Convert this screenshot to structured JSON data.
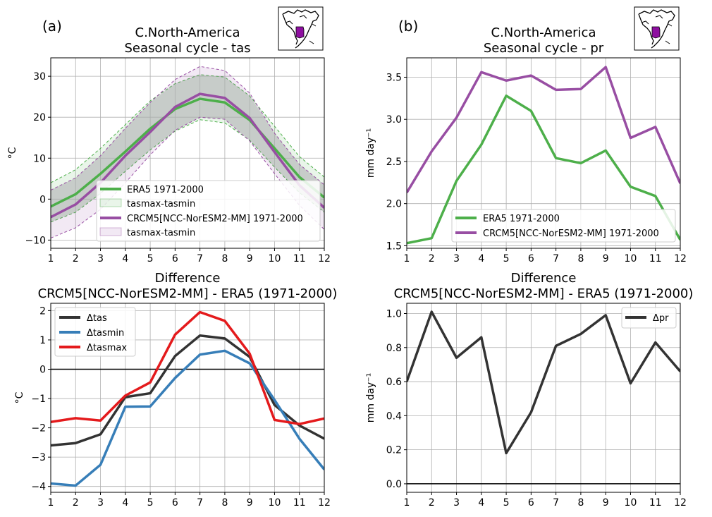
{
  "figure": {
    "panel_a": "(a)",
    "panel_b": "(b)"
  },
  "colors": {
    "era5": "#4daf4a",
    "crcm5": "#984ea3",
    "dark": "#333333",
    "tasmin": "#377eb8",
    "tasmax": "#e41a1c",
    "band_fill": "#c8d0c8"
  },
  "icons": {
    "map_a": "north-america-region-map-icon",
    "map_b": "north-america-region-map-icon"
  },
  "chart_data": [
    {
      "id": "a",
      "type": "line",
      "title_line1": "C.North-America",
      "title_line2": "Seasonal cycle - tas",
      "xlabel": "",
      "ylabel": "°C",
      "x": [
        1,
        2,
        3,
        4,
        5,
        6,
        7,
        8,
        9,
        10,
        11,
        12
      ],
      "xticks": [
        "1",
        "2",
        "3",
        "4",
        "5",
        "6",
        "7",
        "8",
        "9",
        "10",
        "11",
        "12"
      ],
      "ylim": [
        -12,
        34.5
      ],
      "yticks": [
        -10,
        0,
        10,
        20,
        30
      ],
      "yticklabels": [
        "−10",
        "0",
        "10",
        "20",
        "30"
      ],
      "grid": true,
      "legend_position": "lower-right",
      "series": [
        {
          "name": "ERA5 1971-2000",
          "color": "#4daf4a",
          "values": [
            -1.8,
            1.2,
            6.2,
            11.6,
            17.2,
            22.0,
            24.5,
            23.6,
            19.3,
            12.4,
            5.4,
            0.4
          ]
        },
        {
          "name": "CRCM5[NCC-NorESM2-MM] 1971-2000",
          "color": "#984ea3",
          "values": [
            -4.4,
            -1.3,
            4.0,
            10.6,
            16.4,
            22.5,
            25.7,
            24.7,
            19.8,
            11.5,
            3.4,
            -2.1
          ]
        }
      ],
      "bands": [
        {
          "name": "tasmax-tasmin",
          "of": "ERA5 1971-2000",
          "color": "#4daf4a",
          "upper": [
            4.0,
            7.2,
            12.4,
            18.2,
            24.0,
            28.2,
            30.4,
            29.8,
            25.2,
            17.8,
            10.4,
            5.4
          ],
          "lower": [
            -5.6,
            -3.2,
            1.4,
            6.8,
            12.0,
            16.6,
            19.4,
            18.6,
            14.4,
            7.8,
            1.6,
            -3.2
          ]
        },
        {
          "name": "tasmax-tasmin",
          "of": "CRCM5[NCC-NorESM2-MM] 1971-2000",
          "color": "#984ea3",
          "upper": [
            2.2,
            5.2,
            10.6,
            17.3,
            23.6,
            29.2,
            32.4,
            31.4,
            25.9,
            16.1,
            8.5,
            3.5
          ],
          "lower": [
            -9.5,
            -7.0,
            -2.5,
            4.0,
            10.8,
            16.8,
            20.0,
            19.5,
            14.2,
            6.2,
            -1.5,
            -7.4
          ]
        }
      ]
    },
    {
      "id": "b",
      "type": "line",
      "title_line1": "C.North-America",
      "title_line2": "Seasonal cycle - pr",
      "xlabel": "",
      "ylabel": "mm day⁻¹",
      "x": [
        1,
        2,
        3,
        4,
        5,
        6,
        7,
        8,
        9,
        10,
        11,
        12
      ],
      "xticks": [
        "1",
        "2",
        "3",
        "4",
        "5",
        "6",
        "7",
        "8",
        "9",
        "10",
        "11",
        "12"
      ],
      "ylim": [
        1.47,
        3.73
      ],
      "yticks": [
        1.5,
        2.0,
        2.5,
        3.0,
        3.5
      ],
      "yticklabels": [
        "1.5",
        "2.0",
        "2.5",
        "3.0",
        "3.5"
      ],
      "grid": true,
      "legend_position": "lower-right",
      "series": [
        {
          "name": "ERA5 1971-2000",
          "color": "#4daf4a",
          "values": [
            1.53,
            1.59,
            2.27,
            2.7,
            3.28,
            3.1,
            2.54,
            2.48,
            2.63,
            2.2,
            2.09,
            1.57
          ]
        },
        {
          "name": "CRCM5[NCC-NorESM2-MM] 1971-2000",
          "color": "#984ea3",
          "values": [
            2.13,
            2.62,
            3.02,
            3.56,
            3.46,
            3.52,
            3.35,
            3.36,
            3.62,
            2.78,
            2.91,
            2.24
          ]
        }
      ]
    },
    {
      "id": "c",
      "type": "line",
      "title_line1": "Difference",
      "title_line2": "CRCM5[NCC-NorESM2-MM] - ERA5 (1971-2000)",
      "xlabel": "",
      "ylabel": "°C",
      "x": [
        1,
        2,
        3,
        4,
        5,
        6,
        7,
        8,
        9,
        10,
        11,
        12
      ],
      "xticks": [
        "1",
        "2",
        "3",
        "4",
        "5",
        "6",
        "7",
        "8",
        "9",
        "10",
        "11",
        "12"
      ],
      "ylim": [
        -4.2,
        2.25
      ],
      "yticks": [
        -4,
        -3,
        -2,
        -1,
        0,
        1,
        2
      ],
      "yticklabels": [
        "−4",
        "−3",
        "−2",
        "−1",
        "0",
        "1",
        "2"
      ],
      "grid": true,
      "zero_line": true,
      "legend_position": "upper-left",
      "series": [
        {
          "name": "Δtas",
          "color": "#333333",
          "values": [
            -2.6,
            -2.52,
            -2.22,
            -0.95,
            -0.82,
            0.45,
            1.15,
            1.05,
            0.42,
            -1.22,
            -1.92,
            -2.37
          ]
        },
        {
          "name": "Δtasmin",
          "color": "#377eb8",
          "values": [
            -3.9,
            -3.97,
            -3.26,
            -1.28,
            -1.27,
            -0.3,
            0.5,
            0.63,
            0.2,
            -1.05,
            -2.37,
            -3.42
          ]
        },
        {
          "name": "Δtasmax",
          "color": "#e41a1c",
          "values": [
            -1.8,
            -1.67,
            -1.75,
            -0.9,
            -0.45,
            1.18,
            1.95,
            1.65,
            0.53,
            -1.73,
            -1.87,
            -1.68
          ]
        }
      ]
    },
    {
      "id": "d",
      "type": "line",
      "title_line1": "Difference",
      "title_line2": "CRCM5[NCC-NorESM2-MM] - ERA5 (1971-2000)",
      "xlabel": "",
      "ylabel": "mm day⁻¹",
      "x": [
        1,
        2,
        3,
        4,
        5,
        6,
        7,
        8,
        9,
        10,
        11,
        12
      ],
      "xticks": [
        "1",
        "2",
        "3",
        "4",
        "5",
        "6",
        "7",
        "8",
        "9",
        "10",
        "11",
        "12"
      ],
      "ylim": [
        -0.05,
        1.06
      ],
      "yticks": [
        0.0,
        0.2,
        0.4,
        0.6,
        0.8,
        1.0
      ],
      "yticklabels": [
        "0.0",
        "0.2",
        "0.4",
        "0.6",
        "0.8",
        "1.0"
      ],
      "grid": true,
      "zero_line": true,
      "legend_position": "upper-right",
      "series": [
        {
          "name": "Δpr",
          "color": "#333333",
          "values": [
            0.6,
            1.01,
            0.74,
            0.86,
            0.18,
            0.42,
            0.81,
            0.88,
            0.99,
            0.59,
            0.83,
            0.66
          ]
        }
      ]
    }
  ]
}
